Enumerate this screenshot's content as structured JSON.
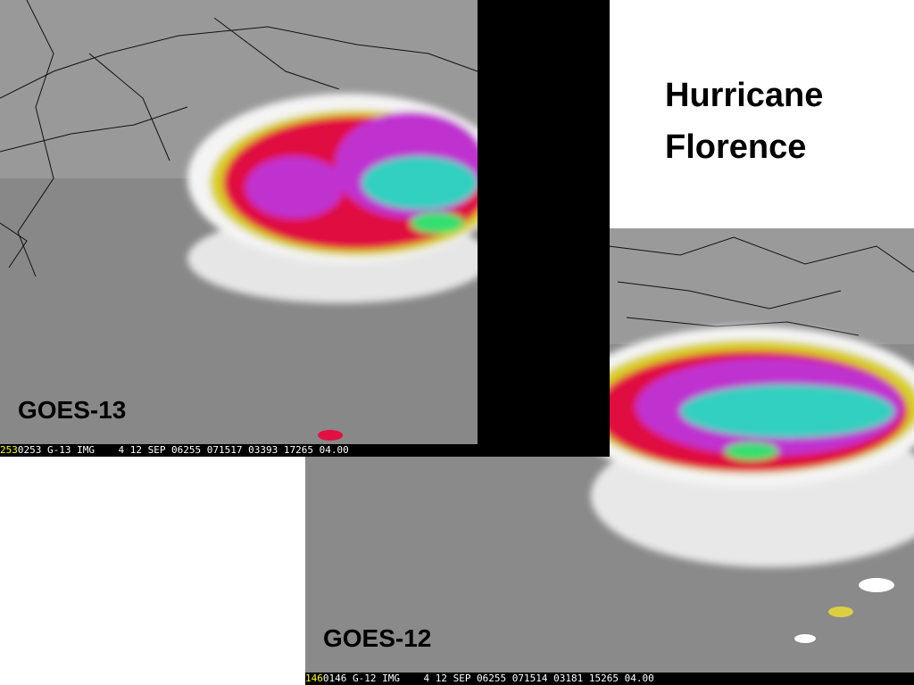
{
  "slide": {
    "title": "Hurricane Florence",
    "images": [
      {
        "label": "GOES-13",
        "status_id": "253",
        "status": "0253 G-13 IMG    4 12 SEP 06255 071517 03393 17265 04.00"
      },
      {
        "label": "GOES-12",
        "status_id": "146",
        "status": "0146 G-12 IMG    4 12 SEP 06255 071514 03181 15265 04.00"
      }
    ]
  }
}
